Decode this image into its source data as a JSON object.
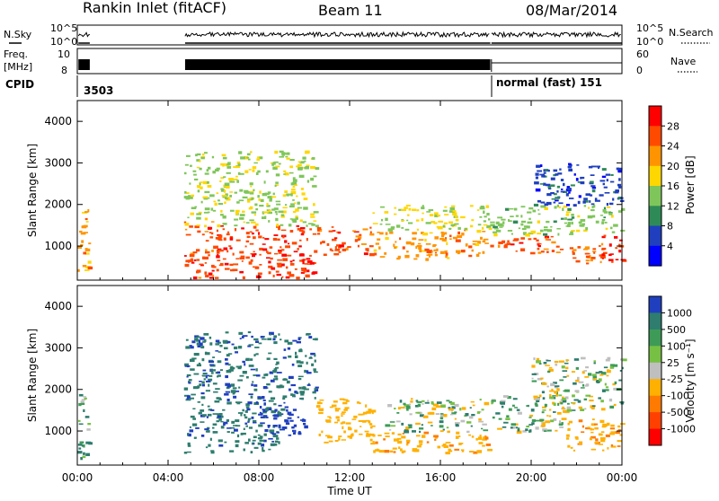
{
  "header": {
    "station": "Rankin Inlet (fitACF)",
    "beam": "Beam 11",
    "date": "08/Mar/2014"
  },
  "sky_panel": {
    "label": "N.Sky",
    "yticks": [
      "10^5",
      "10^0"
    ],
    "right_label": "N.Search",
    "right_yticks": [
      "10^5",
      "10^0"
    ]
  },
  "freq_panel": {
    "label_line1": "Freq.",
    "label_line2": "[MHz]",
    "yticks": [
      "10",
      "8"
    ],
    "right_label": "Nave",
    "right_yticks": [
      "60",
      "0"
    ]
  },
  "cpid_panel": {
    "label": "CPID",
    "segments": [
      "3503",
      "normal (fast) 151"
    ]
  },
  "colorbars": {
    "power": {
      "label": "Power [dB]",
      "ticks": [
        "28",
        "24",
        "20",
        "16",
        "12",
        "8",
        "4"
      ],
      "colors": [
        "#ff0000",
        "#ff4a00",
        "#ff9400",
        "#ffd700",
        "#7fc65a",
        "#2e8b57",
        "#1f3fbf",
        "#0000ff"
      ]
    },
    "velocity": {
      "label": "Velocity [m s⁻¹]",
      "ticks": [
        "1000",
        "500",
        "100",
        "25",
        "-25",
        "-100",
        "-500",
        "-1000"
      ],
      "colors": [
        "#1f3fbf",
        "#2e7d6e",
        "#3d9b57",
        "#76c043",
        "#bfbfbf",
        "#ffb000",
        "#ff7a00",
        "#ff4000",
        "#ff0000"
      ]
    }
  },
  "axes": {
    "ylabel": "Slant Range [km]",
    "xlabel": "Time UT",
    "xticks": [
      "00:00",
      "04:00",
      "08:00",
      "12:00",
      "16:00",
      "20:00",
      "00:00"
    ],
    "yticks": [
      "1000",
      "2000",
      "3000",
      "4000"
    ]
  },
  "chart_data": {
    "type": "heatmap",
    "xlabel": "Time UT",
    "ylabel": "Slant Range [km]",
    "x_range_hours": [
      0,
      24
    ],
    "y_range_km": [
      180,
      4500
    ],
    "panels": [
      {
        "name": "Power",
        "unit": "dB",
        "color_range": [
          0,
          32
        ],
        "regions": [
          {
            "t0": 0.0,
            "t1": 0.5,
            "r0": 300,
            "r1": 2100,
            "level": 22
          },
          {
            "t0": 4.7,
            "t1": 6.0,
            "r0": 250,
            "r1": 1600,
            "level": 26
          },
          {
            "t0": 6.0,
            "t1": 10.5,
            "r0": 250,
            "r1": 1500,
            "level": 27
          },
          {
            "t0": 4.7,
            "t1": 10.5,
            "r0": 1500,
            "r1": 3300,
            "level": 15
          },
          {
            "t0": 10.5,
            "t1": 13.0,
            "r0": 800,
            "r1": 1500,
            "level": 26
          },
          {
            "t0": 13.0,
            "t1": 18.2,
            "r0": 700,
            "r1": 1400,
            "level": 22
          },
          {
            "t0": 13.0,
            "t1": 18.2,
            "r0": 1400,
            "r1": 2000,
            "level": 16
          },
          {
            "t0": 18.2,
            "t1": 24.0,
            "r0": 1300,
            "r1": 2000,
            "level": 14
          },
          {
            "t0": 18.5,
            "t1": 21.5,
            "r0": 850,
            "r1": 1250,
            "level": 26
          },
          {
            "t0": 21.5,
            "t1": 23.5,
            "r0": 600,
            "r1": 1100,
            "level": 25
          },
          {
            "t0": 23.0,
            "t1": 24.0,
            "r0": 600,
            "r1": 1300,
            "level": 28
          },
          {
            "t0": 20.0,
            "t1": 24.0,
            "r0": 2000,
            "r1": 3000,
            "level": 6
          }
        ]
      },
      {
        "name": "Velocity",
        "unit": "m s^-1",
        "color_range": [
          -1000,
          1000
        ],
        "regions": [
          {
            "t0": 0.0,
            "t1": 0.5,
            "r0": 300,
            "r1": 2000,
            "level": 120
          },
          {
            "t0": 4.7,
            "t1": 9.0,
            "r0": 500,
            "r1": 1800,
            "level": 400
          },
          {
            "t0": 8.0,
            "t1": 10.0,
            "r0": 900,
            "r1": 1700,
            "level": 1000
          },
          {
            "t0": 4.7,
            "t1": 10.5,
            "r0": 1800,
            "r1": 3400,
            "level": 450
          },
          {
            "t0": 10.5,
            "t1": 13.0,
            "r0": 700,
            "r1": 1800,
            "level": -300
          },
          {
            "t0": 13.0,
            "t1": 18.2,
            "r0": 500,
            "r1": 1000,
            "level": -400
          },
          {
            "t0": 13.5,
            "t1": 18.0,
            "r0": 1000,
            "r1": 1800,
            "level": 0
          },
          {
            "t0": 18.2,
            "t1": 21.5,
            "r0": 1000,
            "r1": 1900,
            "level": 0
          },
          {
            "t0": 21.5,
            "t1": 24.0,
            "r0": 500,
            "r1": 1300,
            "level": -400
          },
          {
            "t0": 20.0,
            "t1": 24.0,
            "r0": 1500,
            "r1": 2800,
            "level": 0
          }
        ]
      }
    ]
  }
}
